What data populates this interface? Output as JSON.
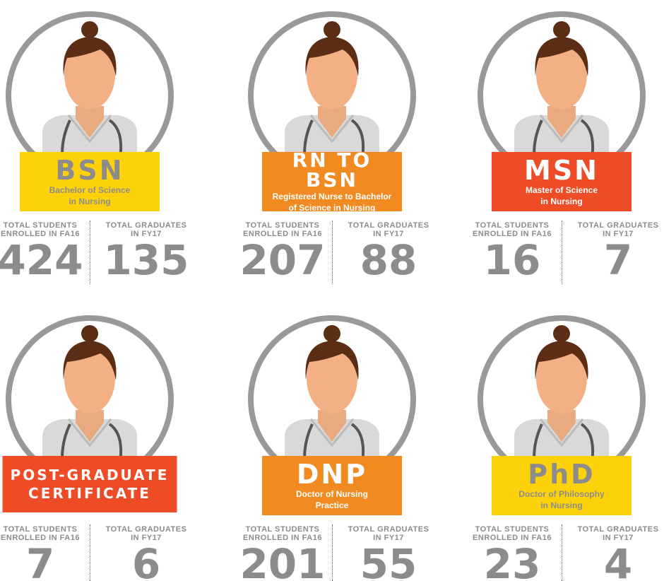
{
  "programs": [
    {
      "title": [
        "BSN"
      ],
      "subtitle": [
        "Bachelor of Science",
        "in Nursing"
      ],
      "banner_color": "#fdd20a",
      "text_color": "#8c8c8c",
      "enrolled_label": [
        "TOTAL STUDENTS",
        "ENROLLED IN FA16"
      ],
      "enrolled": 424,
      "graduates_label": [
        "TOTAL GRADUATES",
        "IN FY17"
      ],
      "graduates": 135
    },
    {
      "title": [
        "RN TO BSN"
      ],
      "subtitle": [
        "Registered Nurse to Bachelor",
        "of Science in Nursing"
      ],
      "banner_color": "#f28a22",
      "text_color": "#ffffff",
      "enrolled_label": [
        "TOTAL STUDENTS",
        "ENROLLED IN FA16"
      ],
      "enrolled": 207,
      "graduates_label": [
        "TOTAL GRADUATES",
        "IN FY17"
      ],
      "graduates": 88
    },
    {
      "title": [
        "MSN"
      ],
      "subtitle": [
        "Master of Science",
        "in Nursing"
      ],
      "banner_color": "#ee4b27",
      "text_color": "#ffffff",
      "enrolled_label": [
        "TOTAL STUDENTS",
        "ENROLLED IN FA16"
      ],
      "enrolled": 16,
      "graduates_label": [
        "TOTAL GRADUATES",
        "IN FY17"
      ],
      "graduates": 7
    },
    {
      "title": [
        "POST-GRADUATE",
        "CERTIFICATE"
      ],
      "subtitle": [],
      "banner_color": "#ee4b27",
      "text_color": "#ffffff",
      "enrolled_label": [
        "TOTAL STUDENTS",
        "ENROLLED IN FA16"
      ],
      "enrolled": 7,
      "graduates_label": [
        "TOTAL GRADUATES",
        "IN FY17"
      ],
      "graduates": 6
    },
    {
      "title": [
        "DNP"
      ],
      "subtitle": [
        "Doctor of Nursing",
        "Practice"
      ],
      "banner_color": "#f28a22",
      "text_color": "#ffffff",
      "enrolled_label": [
        "TOTAL STUDENTS",
        "ENROLLED IN FA16"
      ],
      "enrolled": 201,
      "graduates_label": [
        "TOTAL GRADUATES",
        "IN FY17"
      ],
      "graduates": 55
    },
    {
      "title": [
        "PhD"
      ],
      "subtitle": [
        "Doctor of Philosophy",
        "in Nursing"
      ],
      "banner_color": "#fdd20a",
      "text_color": "#8c8c8c",
      "enrolled_label": [
        "TOTAL STUDENTS",
        "ENROLLED IN FA16"
      ],
      "enrolled": 23,
      "graduates_label": [
        "TOTAL GRADUATES",
        "IN FY17"
      ],
      "graduates": 4
    }
  ]
}
